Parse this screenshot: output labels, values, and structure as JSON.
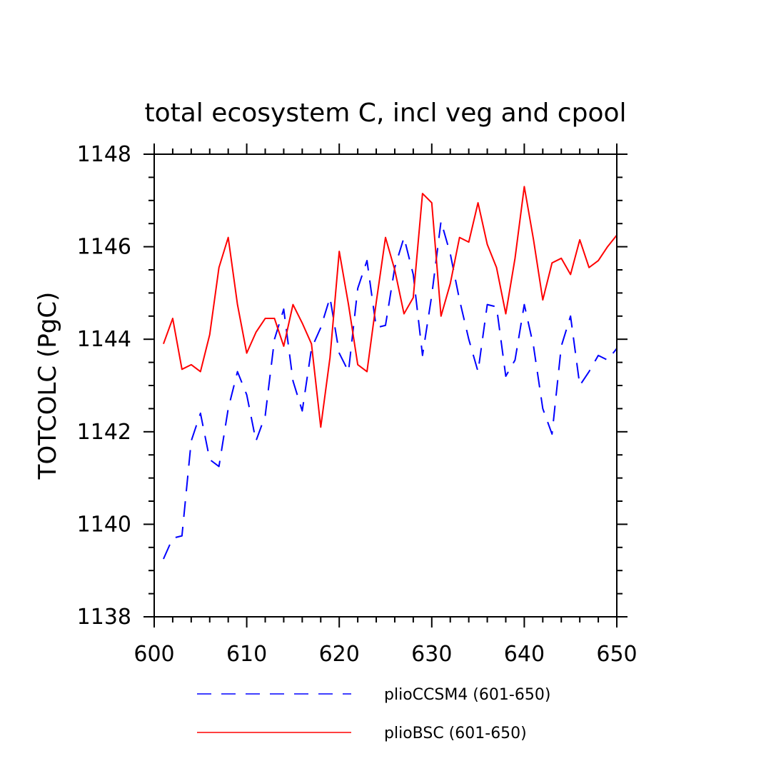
{
  "chart_data": {
    "type": "line",
    "title": "total ecosystem C, incl veg and cpool",
    "xlabel": "",
    "ylabel": "TOTCOLC  (PgC)",
    "xlim": [
      600,
      650
    ],
    "ylim": [
      1138,
      1148
    ],
    "x_ticks": [
      "600",
      "610",
      "620",
      "630",
      "640",
      "650"
    ],
    "y_ticks": [
      "1138",
      "1140",
      "1142",
      "1144",
      "1146",
      "1148"
    ],
    "grid": false,
    "legend_position": "bottom",
    "x": [
      601,
      602,
      603,
      604,
      605,
      606,
      607,
      608,
      609,
      610,
      611,
      612,
      613,
      614,
      615,
      616,
      617,
      618,
      619,
      620,
      621,
      622,
      623,
      624,
      625,
      626,
      627,
      628,
      629,
      630,
      631,
      632,
      633,
      634,
      635,
      636,
      637,
      638,
      639,
      640,
      641,
      642,
      643,
      644,
      645,
      646,
      647,
      648,
      649,
      650
    ],
    "series": [
      {
        "name": "plioCCSM4 (601-650)",
        "color": "#0000ff",
        "dash": "dashed",
        "values": [
          1139.25,
          1139.7,
          1139.75,
          1141.8,
          1142.4,
          1141.4,
          1141.25,
          1142.5,
          1143.3,
          1142.8,
          1141.8,
          1142.35,
          1144.0,
          1144.65,
          1143.1,
          1142.45,
          1143.8,
          1144.25,
          1144.9,
          1143.7,
          1143.3,
          1145.1,
          1145.7,
          1144.25,
          1144.3,
          1145.55,
          1146.2,
          1145.4,
          1143.65,
          1144.95,
          1146.55,
          1145.85,
          1144.85,
          1144.0,
          1143.3,
          1144.75,
          1144.7,
          1143.2,
          1143.55,
          1144.75,
          1143.85,
          1142.5,
          1141.95,
          1143.85,
          1144.5,
          1143.0,
          1143.3,
          1143.65,
          1143.55,
          1143.8
        ]
      },
      {
        "name": "plioBSC (601-650)",
        "color": "#ff0000",
        "dash": "solid",
        "values": [
          1143.9,
          1144.45,
          1143.35,
          1143.45,
          1143.3,
          1144.1,
          1145.55,
          1146.2,
          1144.75,
          1143.7,
          1144.15,
          1144.45,
          1144.45,
          1143.85,
          1144.75,
          1144.35,
          1143.9,
          1142.1,
          1143.6,
          1145.9,
          1144.75,
          1143.45,
          1143.3,
          1144.8,
          1146.2,
          1145.5,
          1144.55,
          1144.9,
          1147.15,
          1146.95,
          1144.5,
          1145.2,
          1146.2,
          1146.1,
          1146.95,
          1146.05,
          1145.55,
          1144.55,
          1145.75,
          1147.3,
          1146.15,
          1144.85,
          1145.65,
          1145.75,
          1145.4,
          1146.15,
          1145.55,
          1145.7,
          1146.0,
          1146.25
        ]
      }
    ]
  }
}
